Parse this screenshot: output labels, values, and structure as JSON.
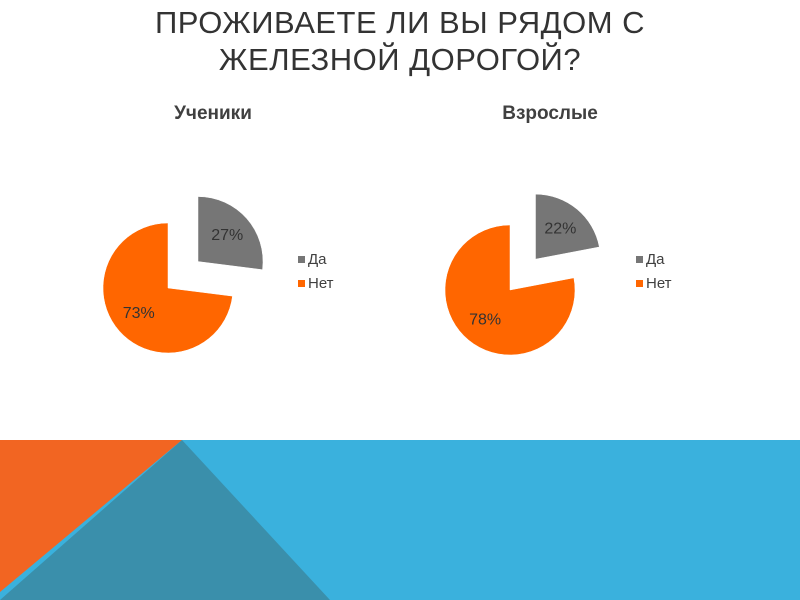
{
  "title": "ПРОЖИВАЕТЕ ЛИ ВЫ РЯДОМ С ЖЕЛЕЗНОЙ ДОРОГОЙ?",
  "chart_data": [
    {
      "type": "pie",
      "title": "Ученики",
      "categories": [
        "Да",
        "Нет"
      ],
      "values": [
        27,
        73
      ],
      "value_labels": [
        "27%",
        "73%"
      ],
      "colors": [
        "#767676",
        "#ff6600"
      ],
      "legend": "right"
    },
    {
      "type": "pie",
      "title": "Взрослые",
      "categories": [
        "Да",
        "Нет"
      ],
      "values": [
        22,
        78
      ],
      "value_labels": [
        "22%",
        "78%"
      ],
      "colors": [
        "#767676",
        "#ff6600"
      ],
      "legend": "right"
    }
  ]
}
